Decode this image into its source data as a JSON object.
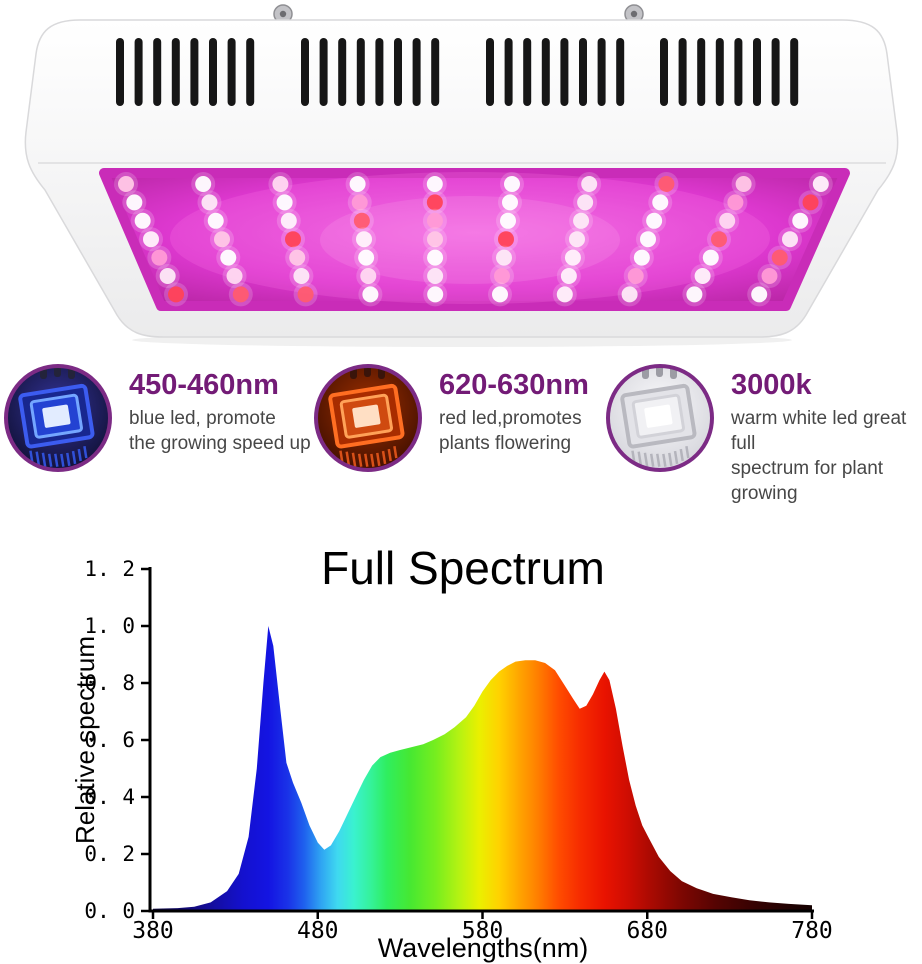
{
  "colors": {
    "heading_purple": "#731b76",
    "body_text": "#474747",
    "icon_ring": "#7c2b85",
    "chart_text": "#000000"
  },
  "photo": {
    "housing_gradient": [
      "#ffffff",
      "#ebebec"
    ],
    "vent_color": "#161616",
    "panel_gradient": [
      "#f06ae2",
      "#dd38cf",
      "#ae2099"
    ],
    "panel_edge_color": "#c92cb8",
    "led_colors": [
      "#ffffff",
      "#ffffff",
      "#fff2fb",
      "#ffd9f1",
      "#ffffff",
      "#ff5b70",
      "#ffc7e6",
      "#ffffff",
      "#ff9ad6",
      "#fde9f7",
      "#ff4257",
      "#ffffff"
    ],
    "screw_color": "#c3c3c7"
  },
  "features": [
    {
      "heading": "450-460nm",
      "lines": [
        "blue led, promote",
        "the growing speed up"
      ],
      "icon": "blue-led-chip-icon",
      "chip": {
        "bg": [
          "#34349a",
          "#0b0b26"
        ],
        "outer": "#18278f",
        "outer_stroke": "#3c5cf0",
        "mid": "#2342d2",
        "mid_stroke": "#74a6ff",
        "die": "#e2ecff",
        "pin": "#23233a",
        "fin": "#3050d8"
      }
    },
    {
      "heading": "620-630nm",
      "lines": [
        "red led,promotes",
        "plants flowering"
      ],
      "icon": "red-led-chip-icon",
      "chip": {
        "bg": [
          "#a03000",
          "#330a00"
        ],
        "outer": "#a82c00",
        "outer_stroke": "#ff6e22",
        "mid": "#cf4a10",
        "mid_stroke": "#ffa258",
        "die": "#ffdfc4",
        "pin": "#3a140a",
        "fin": "#d85018"
      }
    },
    {
      "heading": "3000k",
      "lines": [
        "warm white led great full",
        "spectrum for plant growing"
      ],
      "icon": "white-led-chip-icon",
      "chip": {
        "bg": [
          "#fafafc",
          "#cfcfd6"
        ],
        "outer": "#e3e3e8",
        "outer_stroke": "#b9b9c0",
        "mid": "#f1f1f4",
        "mid_stroke": "#d2d2d8",
        "die": "#ffffff",
        "pin": "#9c9ca4",
        "fin": "#b4b4bc"
      }
    }
  ],
  "chart_data": {
    "type": "area",
    "title": "Full Spectrum",
    "xlabel": "Wavelengths(nm)",
    "ylabel": "Relative spectrum",
    "xlim": [
      380,
      780
    ],
    "ylim": [
      0,
      1.2
    ],
    "grid": false,
    "legend": false,
    "x_ticks": [
      {
        "v": 380,
        "label": "380"
      },
      {
        "v": 480,
        "label": "480"
      },
      {
        "v": 580,
        "label": "580"
      },
      {
        "v": 680,
        "label": "680"
      },
      {
        "v": 780,
        "label": "780"
      }
    ],
    "y_ticks": [
      {
        "v": 0.0,
        "label": "0. 0"
      },
      {
        "v": 0.2,
        "label": "0. 2"
      },
      {
        "v": 0.4,
        "label": "0. 4"
      },
      {
        "v": 0.6,
        "label": "0. 6"
      },
      {
        "v": 0.8,
        "label": "0. 8"
      },
      {
        "v": 1.0,
        "label": "1. 0"
      },
      {
        "v": 1.2,
        "label": "1. 2"
      }
    ],
    "series": [
      {
        "name": "relative spectrum",
        "points": [
          [
            380,
            0.008
          ],
          [
            395,
            0.01
          ],
          [
            405,
            0.015
          ],
          [
            415,
            0.03
          ],
          [
            425,
            0.07
          ],
          [
            432,
            0.13
          ],
          [
            438,
            0.26
          ],
          [
            443,
            0.5
          ],
          [
            447,
            0.8
          ],
          [
            450,
            1.0
          ],
          [
            453,
            0.93
          ],
          [
            457,
            0.72
          ],
          [
            461,
            0.52
          ],
          [
            465,
            0.45
          ],
          [
            470,
            0.38
          ],
          [
            475,
            0.3
          ],
          [
            480,
            0.24
          ],
          [
            484,
            0.215
          ],
          [
            488,
            0.23
          ],
          [
            493,
            0.28
          ],
          [
            498,
            0.34
          ],
          [
            503,
            0.4
          ],
          [
            508,
            0.46
          ],
          [
            513,
            0.51
          ],
          [
            518,
            0.54
          ],
          [
            524,
            0.555
          ],
          [
            530,
            0.565
          ],
          [
            537,
            0.575
          ],
          [
            544,
            0.585
          ],
          [
            550,
            0.6
          ],
          [
            557,
            0.62
          ],
          [
            563,
            0.645
          ],
          [
            570,
            0.68
          ],
          [
            575,
            0.72
          ],
          [
            580,
            0.77
          ],
          [
            585,
            0.81
          ],
          [
            590,
            0.84
          ],
          [
            595,
            0.86
          ],
          [
            600,
            0.875
          ],
          [
            606,
            0.88
          ],
          [
            612,
            0.88
          ],
          [
            618,
            0.87
          ],
          [
            624,
            0.845
          ],
          [
            630,
            0.79
          ],
          [
            635,
            0.745
          ],
          [
            639,
            0.71
          ],
          [
            643,
            0.72
          ],
          [
            647,
            0.76
          ],
          [
            651,
            0.81
          ],
          [
            654,
            0.84
          ],
          [
            657,
            0.81
          ],
          [
            661,
            0.71
          ],
          [
            665,
            0.58
          ],
          [
            669,
            0.46
          ],
          [
            673,
            0.37
          ],
          [
            677,
            0.3
          ],
          [
            681,
            0.255
          ],
          [
            687,
            0.19
          ],
          [
            694,
            0.14
          ],
          [
            701,
            0.105
          ],
          [
            710,
            0.08
          ],
          [
            720,
            0.06
          ],
          [
            731,
            0.048
          ],
          [
            742,
            0.038
          ],
          [
            754,
            0.03
          ],
          [
            766,
            0.025
          ],
          [
            780,
            0.02
          ]
        ]
      }
    ],
    "gradient_stops": [
      [
        380,
        "#0d0640"
      ],
      [
        410,
        "#140c8f"
      ],
      [
        435,
        "#1411cf"
      ],
      [
        450,
        "#1414e2"
      ],
      [
        462,
        "#1a33e8"
      ],
      [
        472,
        "#1f62ee"
      ],
      [
        482,
        "#2fa4f2"
      ],
      [
        492,
        "#3fd9f0"
      ],
      [
        502,
        "#3af2cf"
      ],
      [
        512,
        "#35f29b"
      ],
      [
        522,
        "#2fee5f"
      ],
      [
        536,
        "#46e832"
      ],
      [
        552,
        "#78ee1e"
      ],
      [
        566,
        "#b6f212"
      ],
      [
        578,
        "#eaf000"
      ],
      [
        590,
        "#ffd200"
      ],
      [
        602,
        "#ffa600"
      ],
      [
        614,
        "#ff7d00"
      ],
      [
        626,
        "#ff4d00"
      ],
      [
        640,
        "#f62a00"
      ],
      [
        654,
        "#e91300"
      ],
      [
        668,
        "#cf0d02"
      ],
      [
        682,
        "#aa0a02"
      ],
      [
        700,
        "#7f0702"
      ],
      [
        722,
        "#550402"
      ],
      [
        748,
        "#320202"
      ],
      [
        780,
        "#140101"
      ]
    ]
  }
}
